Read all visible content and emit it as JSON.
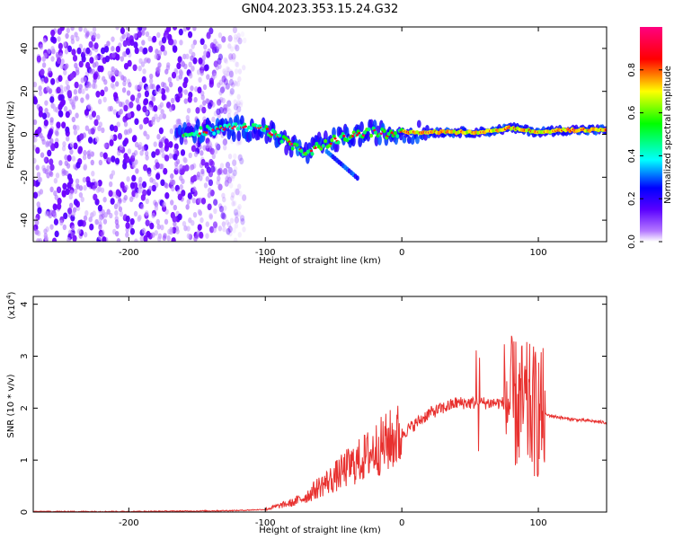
{
  "title": "GN04.2023.353.15.24.G32",
  "chart_data": [
    {
      "type": "heatmap",
      "xlabel": "Height of straight line (km)",
      "ylabel": "Frequency (Hz)",
      "xlim": [
        -270,
        150
      ],
      "ylim": [
        -50,
        50
      ],
      "xticks": [
        -200,
        -100,
        0,
        100
      ],
      "yticks": [
        -40,
        -20,
        0,
        20,
        40
      ],
      "colorbar": {
        "label": "Normalized spectral amplitude",
        "range": [
          0,
          1
        ],
        "ticks": [
          "0.0",
          "0.2",
          "0.4",
          "0.6",
          "0.8"
        ],
        "colormap": [
          "#ffffff",
          "#8a00ff",
          "#0000ff",
          "#00ffff",
          "#00ff00",
          "#ffff00",
          "#ff0000",
          "#ff0080"
        ]
      },
      "ridge": {
        "x": [
          -160,
          -140,
          -120,
          -100,
          -90,
          -80,
          -70,
          -60,
          -50,
          -40,
          -30,
          -20,
          -10,
          0,
          20,
          40,
          60,
          80,
          100,
          120,
          150
        ],
        "y": [
          0,
          2,
          3,
          2,
          -2,
          -5,
          -9,
          -5,
          -3,
          -1,
          0,
          1,
          0,
          1,
          1,
          1,
          1,
          3,
          1,
          2,
          2
        ]
      },
      "background_noise_x_range": [
        -270,
        -115
      ]
    },
    {
      "type": "line",
      "xlabel": "Height of straight line (km)",
      "ylabel": "SNR (10 * v/v)",
      "y_multiplier": "(x10^4)",
      "xlim": [
        -270,
        150
      ],
      "ylim": [
        0,
        4.15
      ],
      "xticks": [
        -200,
        -100,
        0,
        100
      ],
      "yticks": [
        0,
        1,
        2,
        3,
        4
      ],
      "color": "#e8312f",
      "series": [
        {
          "x": [
            -270,
            -200,
            -150,
            -120,
            -100,
            -90,
            -80,
            -70,
            -60,
            -50,
            -40,
            -30,
            -20,
            -10,
            0,
            10,
            20,
            30,
            40,
            50,
            60,
            70,
            80,
            90,
            100,
            110,
            120,
            130,
            140,
            150
          ],
          "values": [
            0.01,
            0.01,
            0.02,
            0.03,
            0.05,
            0.12,
            0.18,
            0.3,
            0.5,
            0.65,
            0.85,
            1.0,
            1.2,
            1.35,
            1.5,
            1.7,
            1.9,
            2.0,
            2.1,
            2.1,
            2.1,
            2.1,
            2.1,
            2.0,
            1.9,
            1.85,
            1.8,
            1.77,
            1.75,
            1.72
          ]
        }
      ]
    }
  ]
}
